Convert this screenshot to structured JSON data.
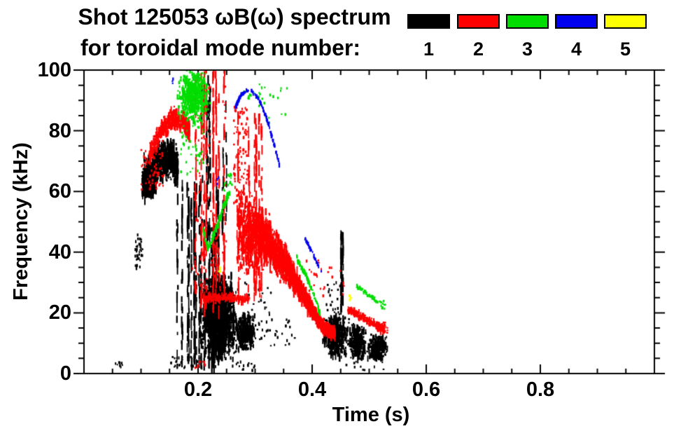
{
  "title": {
    "line1": "Shot 125053 ωB(ω) spectrum",
    "line2": "for toroidal mode number:"
  },
  "legend": {
    "modes": [
      {
        "label": "1",
        "color": "#000000"
      },
      {
        "label": "2",
        "color": "#ff0000"
      },
      {
        "label": "3",
        "color": "#00dd00"
      },
      {
        "label": "4",
        "color": "#0000ee"
      },
      {
        "label": "5",
        "color": "#ffff00"
      }
    ]
  },
  "chart_data": {
    "type": "scatter",
    "title": "Shot 125053 ωB(ω) spectrum for toroidal mode number: 1 2 3 4 5",
    "xlabel": "Time (s)",
    "ylabel": "Frequency (kHz)",
    "xlim": [
      0.0,
      1.0
    ],
    "ylim": [
      0,
      100
    ],
    "xticks": [
      0.2,
      0.4,
      0.6,
      0.8
    ],
    "xtick_labels": [
      "0.2",
      "0.4",
      "0.6",
      "0.8"
    ],
    "yticks": [
      0,
      20,
      40,
      60,
      80,
      100
    ],
    "ytick_labels": [
      "0",
      "20",
      "40",
      "60",
      "80",
      "100"
    ],
    "x_minor_step": 0.05,
    "y_minor_step": 5,
    "grid": false,
    "legend_position": "top-right",
    "series": [
      {
        "name": "mode 1",
        "mode": 1,
        "clusters": [
          {
            "type": "path",
            "pts": [
              [
                0.102,
                63
              ],
              [
                0.118,
                66
              ],
              [
                0.135,
                70
              ],
              [
                0.152,
                71
              ],
              [
                0.165,
                68
              ]
            ],
            "spread": 8,
            "n": 900,
            "elong": 8
          },
          {
            "type": "blob",
            "t": [
              0.104,
              0.128
            ],
            "f": [
              58,
              68
            ],
            "n": 420,
            "elong": 8
          },
          {
            "type": "vstreaks",
            "t": [
              0.146,
              0.205
            ],
            "f": [
              3,
              62
            ],
            "k": 12,
            "n": 260
          },
          {
            "type": "vstreaks",
            "t": [
              0.205,
              0.252
            ],
            "f": [
              45,
              97
            ],
            "k": 7,
            "n": 90
          },
          {
            "type": "dots",
            "t": [
              0.09,
              0.103
            ],
            "f": [
              34,
              46
            ],
            "n": 35
          },
          {
            "type": "dots",
            "t": [
              0.054,
              0.068
            ],
            "f": [
              2,
              5
            ],
            "n": 10
          },
          {
            "type": "dots",
            "t": [
              0.148,
              0.205
            ],
            "f": [
              1.5,
              5.5
            ],
            "n": 28
          },
          {
            "type": "blob",
            "t": [
              0.205,
              0.268
            ],
            "f": [
              4,
              33
            ],
            "n": 1500,
            "elong": 7
          },
          {
            "type": "blob",
            "t": [
              0.262,
              0.302
            ],
            "f": [
              7,
              20
            ],
            "n": 330,
            "elong": 5
          },
          {
            "type": "vstreaks",
            "t": [
              0.206,
              0.24
            ],
            "f": [
              2,
              50
            ],
            "k": 8,
            "n": 160
          },
          {
            "type": "vstreaks",
            "t": [
              0.229,
              0.236
            ],
            "f": [
              18,
              64
            ],
            "k": 2,
            "n": 60
          },
          {
            "type": "dots",
            "t": [
              0.3,
              0.37
            ],
            "f": [
              9,
              18
            ],
            "n": 25
          },
          {
            "type": "blob",
            "t": [
              0.418,
              0.465
            ],
            "f": [
              5,
              20
            ],
            "n": 450,
            "elong": 6
          },
          {
            "type": "blob",
            "t": [
              0.465,
              0.495
            ],
            "f": [
              4,
              17
            ],
            "n": 280,
            "elong": 6
          },
          {
            "type": "blob",
            "t": [
              0.495,
              0.533
            ],
            "f": [
              4,
              13
            ],
            "n": 300,
            "elong": 5
          },
          {
            "type": "vstreaks",
            "t": [
              0.449,
              0.455
            ],
            "f": [
              20,
              46
            ],
            "k": 2,
            "n": 50
          },
          {
            "type": "dots",
            "t": [
              0.425,
              0.45
            ],
            "f": [
              18,
              30
            ],
            "n": 20
          },
          {
            "type": "dots",
            "t": [
              0.27,
              0.33
            ],
            "f": [
              12,
              30
            ],
            "n": 40
          },
          {
            "type": "dots",
            "t": [
              0.26,
              0.3
            ],
            "f": [
              1,
              4
            ],
            "n": 14
          },
          {
            "type": "dots",
            "t": [
              0.46,
              0.53
            ],
            "f": [
              1,
              4
            ],
            "n": 10
          }
        ]
      },
      {
        "name": "mode 2",
        "mode": 2,
        "clusters": [
          {
            "type": "path",
            "pts": [
              [
                0.115,
                72
              ],
              [
                0.135,
                80
              ],
              [
                0.155,
                84
              ],
              [
                0.175,
                83
              ],
              [
                0.185,
                80
              ]
            ],
            "spread": 4.5,
            "n": 550,
            "elong": 5
          },
          {
            "type": "dots",
            "t": [
              0.1,
              0.14
            ],
            "f": [
              60,
              74
            ],
            "n": 60
          },
          {
            "type": "vstreaks",
            "t": [
              0.186,
              0.247
            ],
            "f": [
              20,
              100
            ],
            "k": 9,
            "n": 280
          },
          {
            "type": "dots",
            "t": [
              0.19,
              0.25
            ],
            "f": [
              25,
              95
            ],
            "n": 80
          },
          {
            "type": "dots",
            "t": [
              0.262,
              0.287
            ],
            "f": [
              55,
              88
            ],
            "n": 90
          },
          {
            "type": "path",
            "pts": [
              [
                0.268,
                45
              ],
              [
                0.3,
                46
              ],
              [
                0.325,
                43
              ],
              [
                0.35,
                37
              ],
              [
                0.375,
                29
              ],
              [
                0.4,
                21
              ],
              [
                0.42,
                15
              ],
              [
                0.44,
                13
              ]
            ],
            "spread": [
              19,
              15,
              11,
              8,
              5,
              3,
              2,
              1.5
            ],
            "n": 2400,
            "elong": 8
          },
          {
            "type": "vstreaks",
            "t": [
              0.268,
              0.315
            ],
            "f": [
              25,
              85
            ],
            "k": 6,
            "n": 150
          },
          {
            "type": "path",
            "pts": [
              [
                0.21,
                25
              ],
              [
                0.25,
                25
              ],
              [
                0.29,
                24.5
              ]
            ],
            "spread": 2,
            "n": 220,
            "elong": 4
          },
          {
            "type": "path",
            "pts": [
              [
                0.463,
                21
              ],
              [
                0.49,
                18.5
              ],
              [
                0.515,
                15.5
              ],
              [
                0.527,
                14.5
              ]
            ],
            "spread": 1.6,
            "n": 260,
            "elong": 4
          },
          {
            "type": "dots",
            "t": [
              0.515,
              0.533
            ],
            "f": [
              13,
              17
            ],
            "n": 25
          },
          {
            "type": "dots",
            "t": [
              0.39,
              0.46
            ],
            "f": [
              25,
              38
            ],
            "n": 25
          },
          {
            "type": "dots",
            "t": [
              0.195,
              0.215
            ],
            "f": [
              1,
              4
            ],
            "n": 8
          }
        ]
      },
      {
        "name": "mode 3",
        "mode": 3,
        "clusters": [
          {
            "type": "blob",
            "t": [
              0.163,
              0.222
            ],
            "f": [
              82,
              100
            ],
            "n": 550,
            "elong": 4
          },
          {
            "type": "dots",
            "t": [
              0.168,
              0.21
            ],
            "f": [
              65,
              82
            ],
            "n": 45
          },
          {
            "type": "dots",
            "t": [
              0.28,
              0.315
            ],
            "f": [
              88,
              96
            ],
            "n": 14
          },
          {
            "type": "dots",
            "t": [
              0.3,
              0.36
            ],
            "f": [
              82,
              95
            ],
            "n": 14
          },
          {
            "type": "path",
            "pts": [
              [
                0.209,
                47
              ],
              [
                0.218,
                41
              ],
              [
                0.232,
                48
              ],
              [
                0.245,
                55
              ],
              [
                0.253,
                59
              ]
            ],
            "spread": 1.6,
            "n": 150,
            "elong": 3
          },
          {
            "type": "dots",
            "t": [
              0.245,
              0.26
            ],
            "f": [
              58,
              66
            ],
            "n": 20
          },
          {
            "type": "path",
            "pts": [
              [
                0.373,
                38
              ],
              [
                0.39,
                32
              ],
              [
                0.403,
                26
              ],
              [
                0.414,
                20
              ]
            ],
            "spread": 1.4,
            "n": 90,
            "elong": 3
          },
          {
            "type": "path",
            "pts": [
              [
                0.477,
                29
              ],
              [
                0.498,
                26
              ],
              [
                0.515,
                23.5
              ]
            ],
            "spread": 1.1,
            "n": 60,
            "elong": 2
          },
          {
            "type": "dots",
            "t": [
              0.515,
              0.53
            ],
            "f": [
              21,
              24
            ],
            "n": 12
          }
        ]
      },
      {
        "name": "mode 4",
        "mode": 4,
        "clusters": [
          {
            "type": "path",
            "pts": [
              [
                0.266,
                88
              ],
              [
                0.276,
                92
              ],
              [
                0.292,
                93.5
              ],
              [
                0.308,
                90
              ],
              [
                0.322,
                83
              ],
              [
                0.334,
                75
              ],
              [
                0.344,
                68
              ]
            ],
            "spread": 0.7,
            "n": 120,
            "elong": 3
          },
          {
            "type": "path",
            "pts": [
              [
                0.386,
                45
              ],
              [
                0.4,
                40
              ],
              [
                0.417,
                33
              ]
            ],
            "spread": 0.7,
            "n": 40,
            "elong": 3
          },
          {
            "type": "dots",
            "t": [
              0.154,
              0.158
            ],
            "f": [
              95,
              98
            ],
            "n": 3
          },
          {
            "type": "dots",
            "t": [
              0.233,
              0.237
            ],
            "f": [
              62,
              65
            ],
            "n": 3
          }
        ]
      },
      {
        "name": "mode 5",
        "mode": 5,
        "clusters": [
          {
            "type": "dots",
            "t": [
              0.462,
              0.468
            ],
            "f": [
              24,
              26
            ],
            "n": 6
          },
          {
            "type": "dots",
            "t": [
              0.236,
              0.24
            ],
            "f": [
              33.5,
              35.5
            ],
            "n": 4
          }
        ]
      }
    ]
  }
}
